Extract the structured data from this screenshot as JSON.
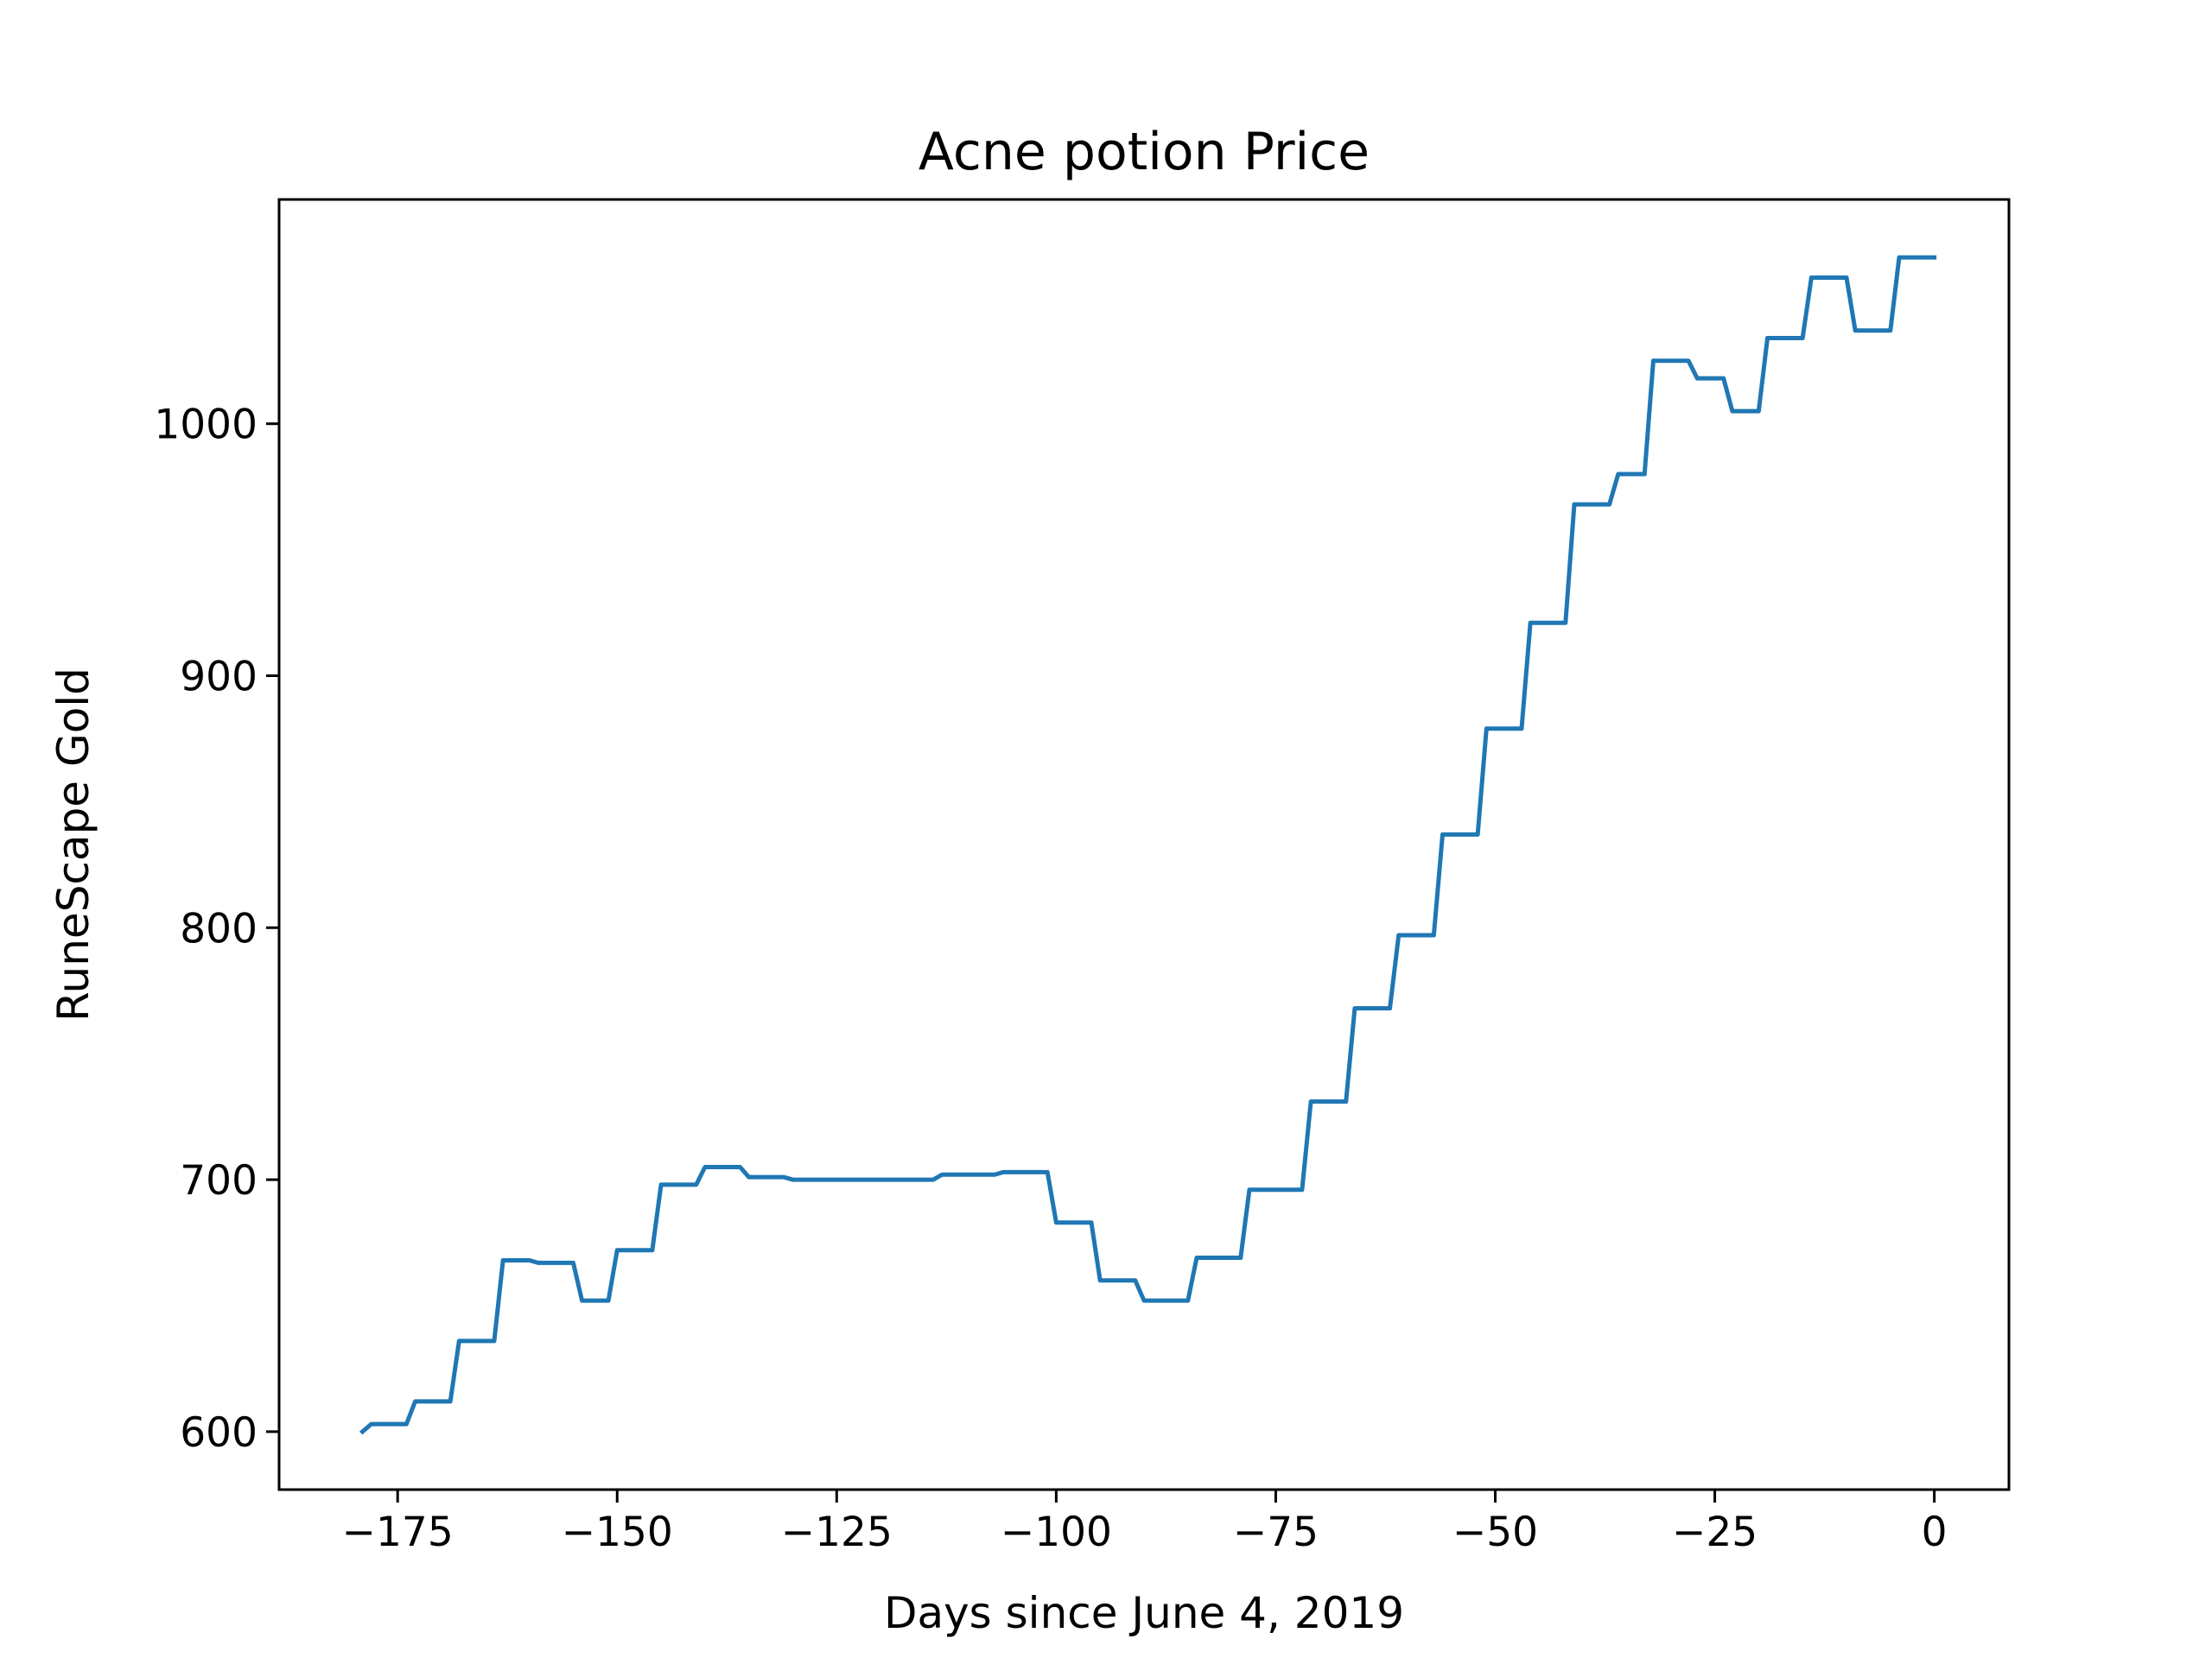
{
  "chart_data": {
    "type": "line",
    "title": "Acne potion Price",
    "xlabel": "Days since June 4, 2019",
    "ylabel": "RuneScape Gold",
    "xlim": [
      -188.5,
      8.5
    ],
    "ylim": [
      577,
      1089
    ],
    "xticks": [
      -175,
      -150,
      -125,
      -100,
      -75,
      -50,
      -25,
      0
    ],
    "xtick_labels": [
      "−175",
      "−150",
      "−125",
      "−100",
      "−75",
      "−50",
      "−25",
      "0"
    ],
    "yticks": [
      600,
      700,
      800,
      900,
      1000
    ],
    "ytick_labels": [
      "600",
      "700",
      "800",
      "900",
      "1000"
    ],
    "grid": false,
    "legend": "none",
    "series": [
      {
        "color": "#1f77b4",
        "x": [
          -179,
          -178,
          -174,
          -173,
          -169,
          -168,
          -164,
          -163,
          -160,
          -159,
          -155,
          -154,
          -151,
          -150,
          -146,
          -145,
          -141,
          -140,
          -136,
          -135,
          -131,
          -130,
          -114,
          -113,
          -107,
          -106,
          -101,
          -100,
          -96,
          -95,
          -91,
          -90,
          -85,
          -84,
          -79,
          -78,
          -72,
          -71,
          -67,
          -66,
          -62,
          -61,
          -57,
          -56,
          -52,
          -51,
          -47,
          -46,
          -42,
          -41,
          -37,
          -36,
          -33,
          -32,
          -28,
          -27,
          -24,
          -23,
          -20,
          -19,
          -15,
          -14,
          -10,
          -9,
          -5,
          -4,
          0
        ],
        "y": [
          600,
          603,
          603,
          612,
          612,
          636,
          636,
          668,
          668,
          667,
          667,
          652,
          652,
          672,
          672,
          698,
          698,
          705,
          705,
          701,
          701,
          700,
          700,
          702,
          702,
          703,
          703,
          683,
          683,
          660,
          660,
          652,
          652,
          669,
          669,
          696,
          696,
          731,
          731,
          768,
          768,
          797,
          797,
          837,
          837,
          879,
          879,
          921,
          921,
          968,
          968,
          980,
          980,
          1025,
          1025,
          1018,
          1018,
          1005,
          1005,
          1034,
          1034,
          1058,
          1058,
          1037,
          1037,
          1066,
          1066
        ]
      }
    ]
  }
}
